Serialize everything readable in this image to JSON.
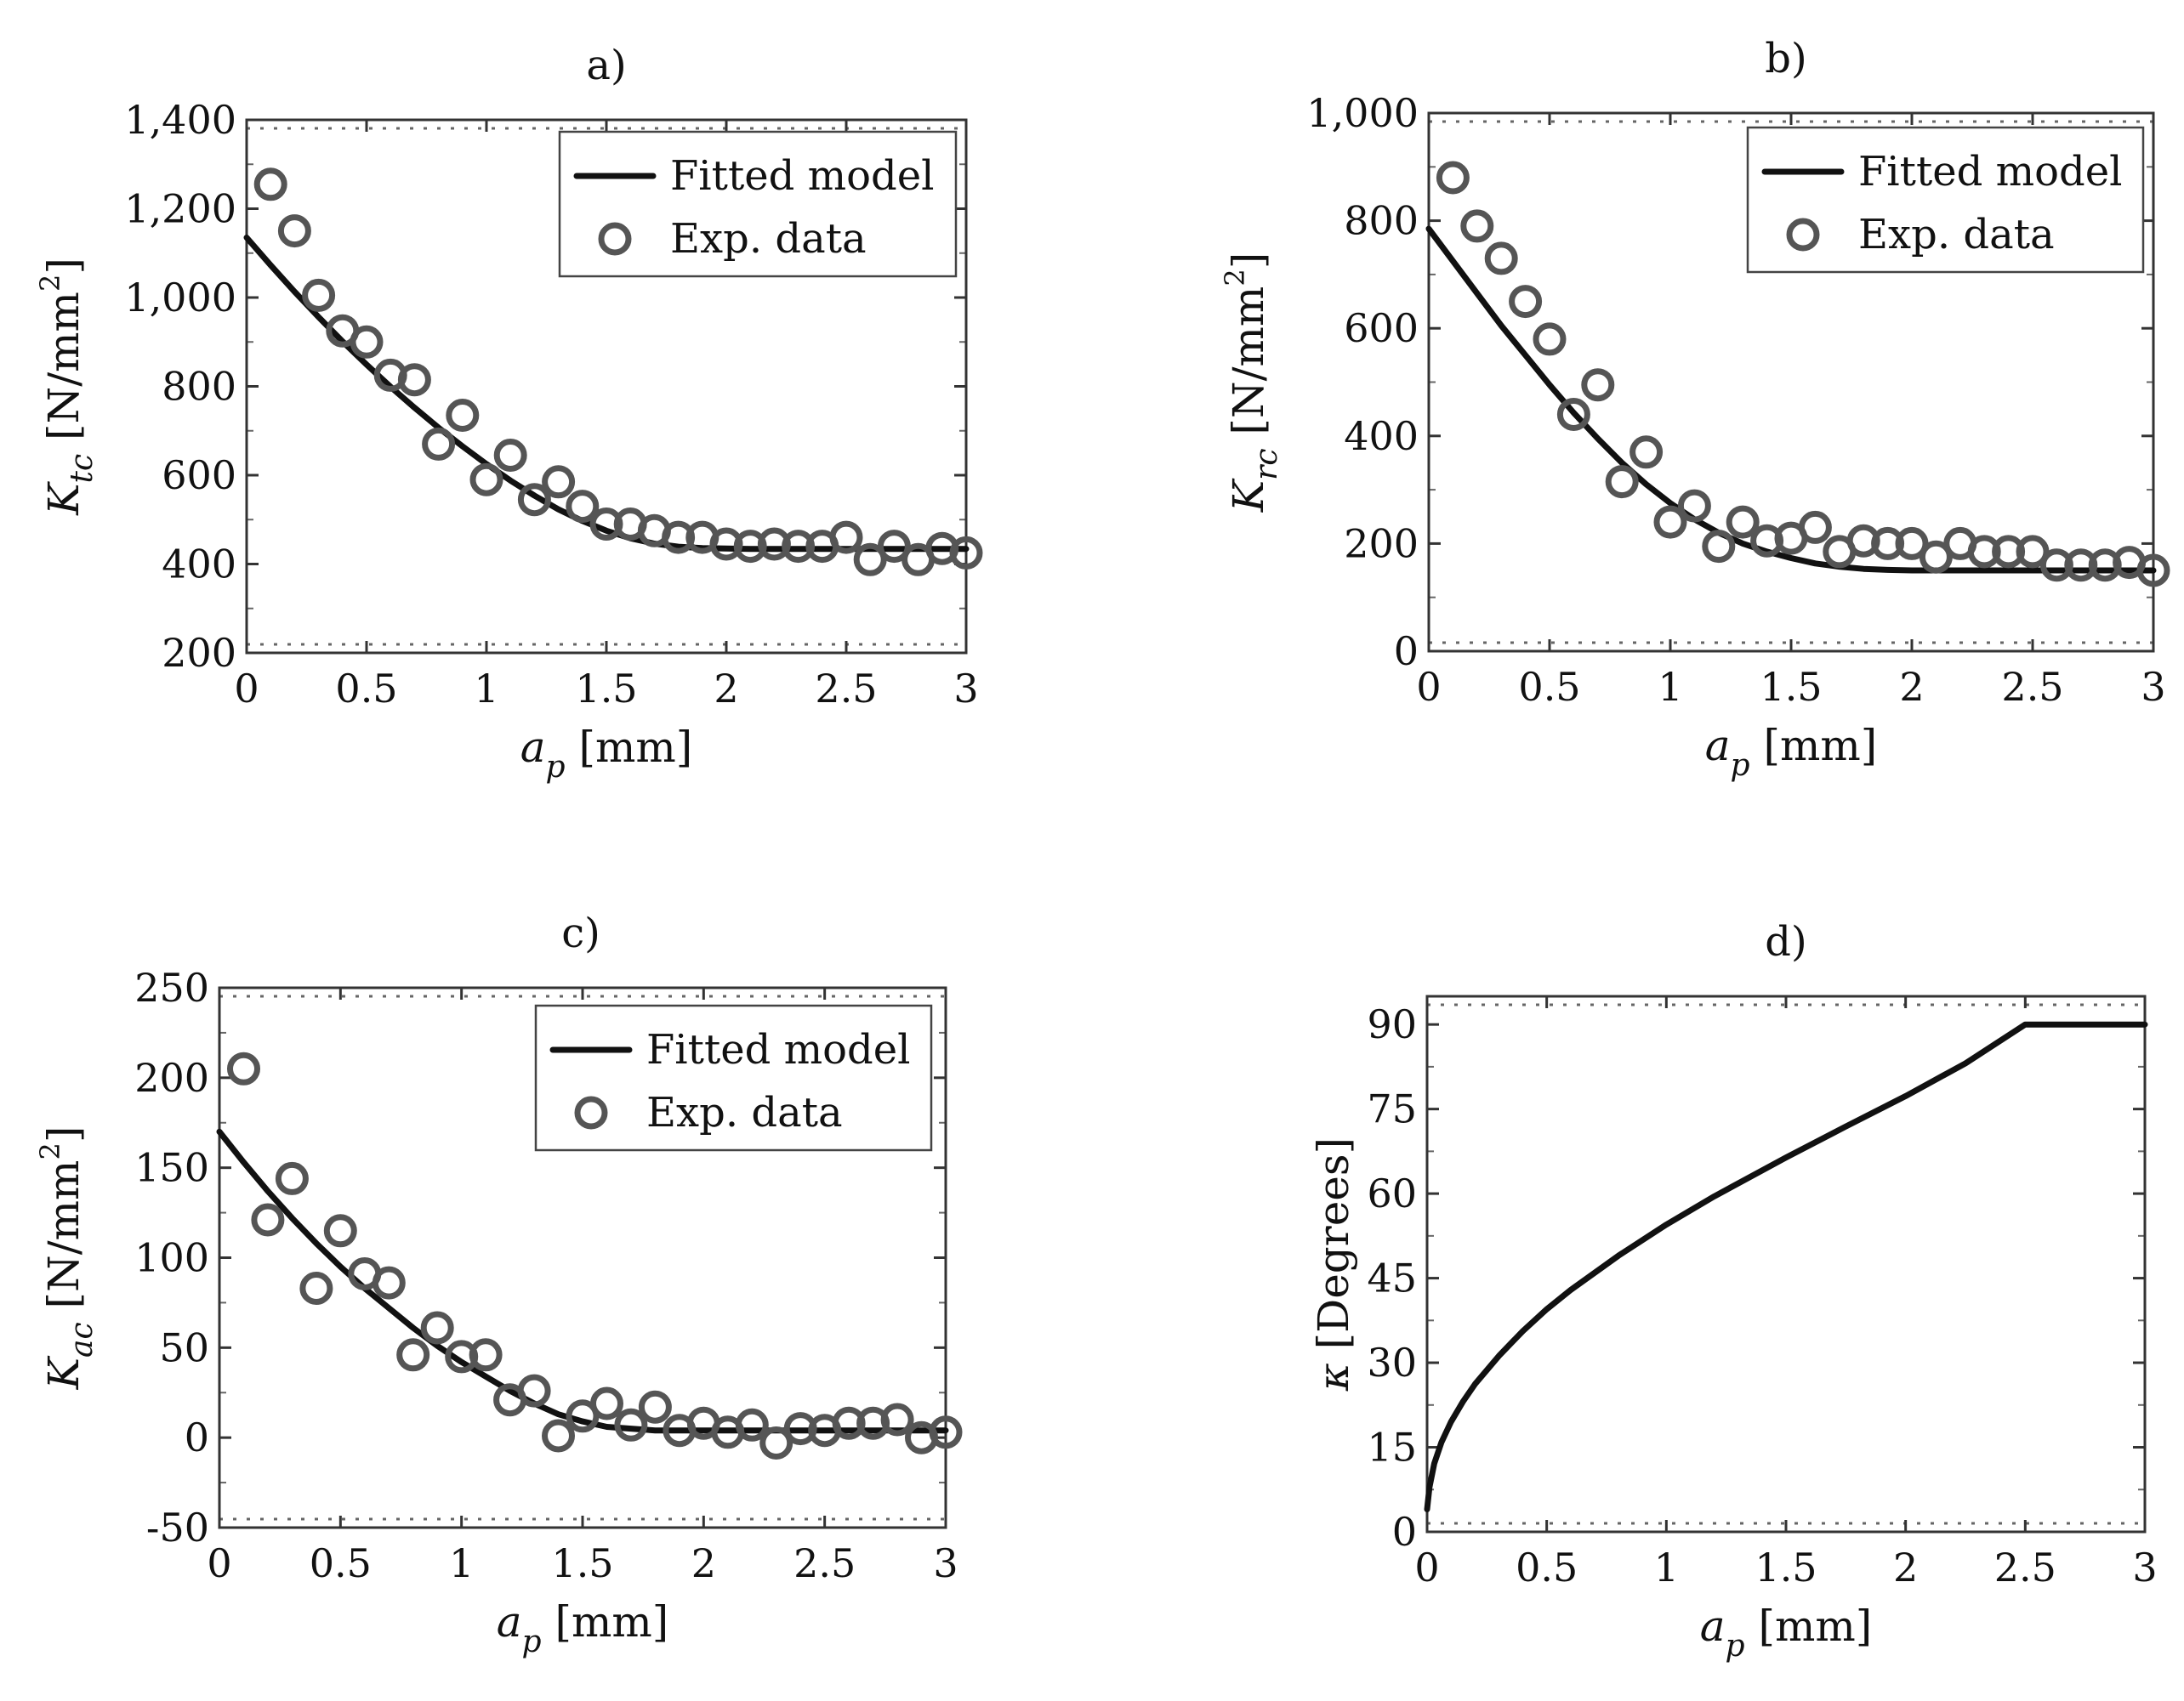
{
  "chart_data": [
    {
      "id": "a",
      "type": "scatter",
      "title": "a)",
      "xlabel": {
        "main": "a",
        "sub": "p",
        "unit": "[mm]"
      },
      "ylabel": {
        "main": "K",
        "sub": "tc",
        "unit": "[N/mm",
        "sup": "2",
        "close": "]"
      },
      "xlim": [
        0,
        3
      ],
      "ylim": [
        200,
        1400
      ],
      "xticks": [
        0,
        0.5,
        1,
        1.5,
        2,
        2.5,
        3
      ],
      "xtick_labels": [
        "0",
        "0.5",
        "1",
        "1.5",
        "2",
        "2.5",
        "3"
      ],
      "yticks": [
        200,
        400,
        600,
        800,
        1000,
        1200,
        1400
      ],
      "ytick_labels": [
        "200",
        "400",
        "600",
        "800",
        "1,000",
        "1,200",
        "1,400"
      ],
      "legend": {
        "position": "top-right",
        "entries": [
          "Fitted model",
          "Exp. data"
        ]
      },
      "series": [
        {
          "name": "Fitted model",
          "kind": "line",
          "x": [
            0,
            0.1,
            0.2,
            0.3,
            0.4,
            0.5,
            0.6,
            0.7,
            0.8,
            0.9,
            1.0,
            1.1,
            1.2,
            1.3,
            1.4,
            1.5,
            1.6,
            1.7,
            1.8,
            1.9,
            2.0,
            2.1,
            2.2,
            3.0
          ],
          "y": [
            1135,
            1073,
            1013,
            956,
            901,
            849,
            799,
            752,
            707,
            665,
            625,
            588,
            554,
            523,
            497,
            475,
            458,
            446,
            439,
            436,
            435,
            434,
            434,
            434
          ]
        },
        {
          "name": "Exp. data",
          "kind": "scatter",
          "x": [
            0.1,
            0.2,
            0.3,
            0.4,
            0.5,
            0.6,
            0.7,
            0.8,
            0.9,
            1.0,
            1.1,
            1.2,
            1.3,
            1.4,
            1.5,
            1.6,
            1.7,
            1.8,
            1.9,
            2.0,
            2.1,
            2.2,
            2.3,
            2.4,
            2.5,
            2.6,
            2.7,
            2.8,
            2.9,
            3.0
          ],
          "y": [
            1255,
            1150,
            1005,
            925,
            900,
            825,
            815,
            670,
            735,
            590,
            645,
            545,
            585,
            530,
            490,
            490,
            475,
            460,
            460,
            445,
            440,
            445,
            440,
            440,
            460,
            410,
            440,
            410,
            435,
            425
          ]
        }
      ]
    },
    {
      "id": "b",
      "type": "scatter",
      "title": "b)",
      "xlabel": {
        "main": "a",
        "sub": "p",
        "unit": "[mm]"
      },
      "ylabel": {
        "main": "K",
        "sub": "rc",
        "unit": "[N/mm",
        "sup": "2",
        "close": "]"
      },
      "xlim": [
        0,
        3
      ],
      "ylim": [
        0,
        1000
      ],
      "xticks": [
        0,
        0.5,
        1,
        1.5,
        2,
        2.5,
        3
      ],
      "xtick_labels": [
        "0",
        "0.5",
        "1",
        "1.5",
        "2",
        "2.5",
        "3"
      ],
      "yticks": [
        0,
        200,
        400,
        600,
        800,
        1000
      ],
      "ytick_labels": [
        "0",
        "200",
        "400",
        "600",
        "800",
        "1,000"
      ],
      "legend": {
        "position": "top-right",
        "entries": [
          "Fitted model",
          "Exp. data"
        ]
      },
      "series": [
        {
          "name": "Fitted model",
          "kind": "line",
          "x": [
            0,
            0.1,
            0.2,
            0.3,
            0.4,
            0.5,
            0.6,
            0.7,
            0.8,
            0.9,
            1.0,
            1.1,
            1.2,
            1.3,
            1.4,
            1.5,
            1.6,
            1.7,
            1.8,
            1.9,
            2.0,
            2.1,
            2.2,
            2.3,
            3.0
          ],
          "y": [
            785,
            725,
            665,
            605,
            550,
            495,
            443,
            395,
            350,
            310,
            275,
            245,
            220,
            200,
            185,
            173,
            163,
            157,
            153,
            151,
            150,
            150,
            150,
            150,
            150
          ]
        },
        {
          "name": "Exp. data",
          "kind": "scatter",
          "x": [
            0.1,
            0.2,
            0.3,
            0.4,
            0.5,
            0.6,
            0.7,
            0.8,
            0.9,
            1.0,
            1.1,
            1.2,
            1.3,
            1.4,
            1.5,
            1.6,
            1.7,
            1.8,
            1.9,
            2.0,
            2.1,
            2.2,
            2.3,
            2.4,
            2.5,
            2.6,
            2.7,
            2.8,
            2.9,
            3.0
          ],
          "y": [
            880,
            790,
            730,
            650,
            580,
            440,
            495,
            315,
            370,
            240,
            270,
            195,
            240,
            205,
            210,
            230,
            185,
            205,
            200,
            200,
            175,
            200,
            185,
            185,
            185,
            160,
            160,
            160,
            165,
            150
          ]
        }
      ]
    },
    {
      "id": "c",
      "type": "scatter",
      "title": "c)",
      "xlabel": {
        "main": "a",
        "sub": "p",
        "unit": "[mm]"
      },
      "ylabel": {
        "main": "K",
        "sub": "ac",
        "unit": "[N/mm",
        "sup": "2",
        "close": "]"
      },
      "xlim": [
        0,
        3
      ],
      "ylim": [
        -50,
        250
      ],
      "xticks": [
        0,
        0.5,
        1,
        1.5,
        2,
        2.5,
        3
      ],
      "xtick_labels": [
        "0",
        "0.5",
        "1",
        "1.5",
        "2",
        "2.5",
        "3"
      ],
      "yticks": [
        -50,
        0,
        50,
        100,
        150,
        200,
        250
      ],
      "ytick_labels": [
        "-50",
        "0",
        "50",
        "100",
        "150",
        "200",
        "250"
      ],
      "legend": {
        "position": "top-right",
        "entries": [
          "Fitted model",
          "Exp. data"
        ]
      },
      "series": [
        {
          "name": "Fitted model",
          "kind": "line",
          "x": [
            0,
            0.1,
            0.2,
            0.3,
            0.4,
            0.5,
            0.6,
            0.7,
            0.8,
            0.9,
            1.0,
            1.1,
            1.2,
            1.3,
            1.4,
            1.5,
            1.6,
            1.7,
            1.8,
            1.9,
            2.0,
            3.0
          ],
          "y": [
            170,
            153,
            137,
            122,
            108,
            95,
            83,
            72,
            61,
            51,
            42,
            34,
            26,
            19,
            13,
            9,
            6,
            5,
            4,
            4,
            4,
            4
          ]
        },
        {
          "name": "Exp. data",
          "kind": "scatter",
          "x": [
            0.1,
            0.2,
            0.3,
            0.4,
            0.5,
            0.6,
            0.7,
            0.8,
            0.9,
            1.0,
            1.1,
            1.2,
            1.3,
            1.4,
            1.5,
            1.6,
            1.7,
            1.8,
            1.9,
            2.0,
            2.1,
            2.2,
            2.3,
            2.4,
            2.5,
            2.6,
            2.7,
            2.8,
            2.9,
            3.0
          ],
          "y": [
            205,
            121,
            144,
            83,
            115,
            91,
            86,
            46,
            61,
            45,
            46,
            21,
            26,
            1,
            12,
            19,
            7,
            17,
            4,
            8,
            3,
            7,
            -3,
            5,
            4,
            8,
            8,
            10,
            0,
            3
          ]
        }
      ]
    },
    {
      "id": "d",
      "type": "line",
      "title": "d)",
      "xlabel": {
        "main": "a",
        "sub": "p",
        "unit": "[mm]"
      },
      "ylabel": {
        "main": "κ",
        "sub": "",
        "unit": "[Degrees]",
        "sup": "",
        "close": ""
      },
      "xlim": [
        0,
        3
      ],
      "ylim": [
        0,
        95
      ],
      "xticks": [
        0,
        0.5,
        1,
        1.5,
        2,
        2.5,
        3
      ],
      "xtick_labels": [
        "0",
        "0.5",
        "1",
        "1.5",
        "2",
        "2.5",
        "3"
      ],
      "yticks": [
        0,
        15,
        30,
        45,
        60,
        75,
        90
      ],
      "ytick_labels": [
        "0",
        "15",
        "30",
        "45",
        "60",
        "75",
        "90"
      ],
      "legend": null,
      "series": [
        {
          "name": "kappa",
          "kind": "line",
          "x": [
            0,
            0.01,
            0.03,
            0.06,
            0.1,
            0.15,
            0.2,
            0.3,
            0.4,
            0.5,
            0.6,
            0.8,
            1.0,
            1.2,
            1.5,
            1.75,
            2.0,
            2.25,
            2.5,
            2.6,
            2.8,
            3.0
          ],
          "y": [
            4,
            7.9,
            12.1,
            15.9,
            19.5,
            23.1,
            26.2,
            31.2,
            35.6,
            39.5,
            42.9,
            49.0,
            54.5,
            59.5,
            66.4,
            71.9,
            77.3,
            83.1,
            90,
            90,
            90,
            90
          ]
        }
      ]
    }
  ]
}
